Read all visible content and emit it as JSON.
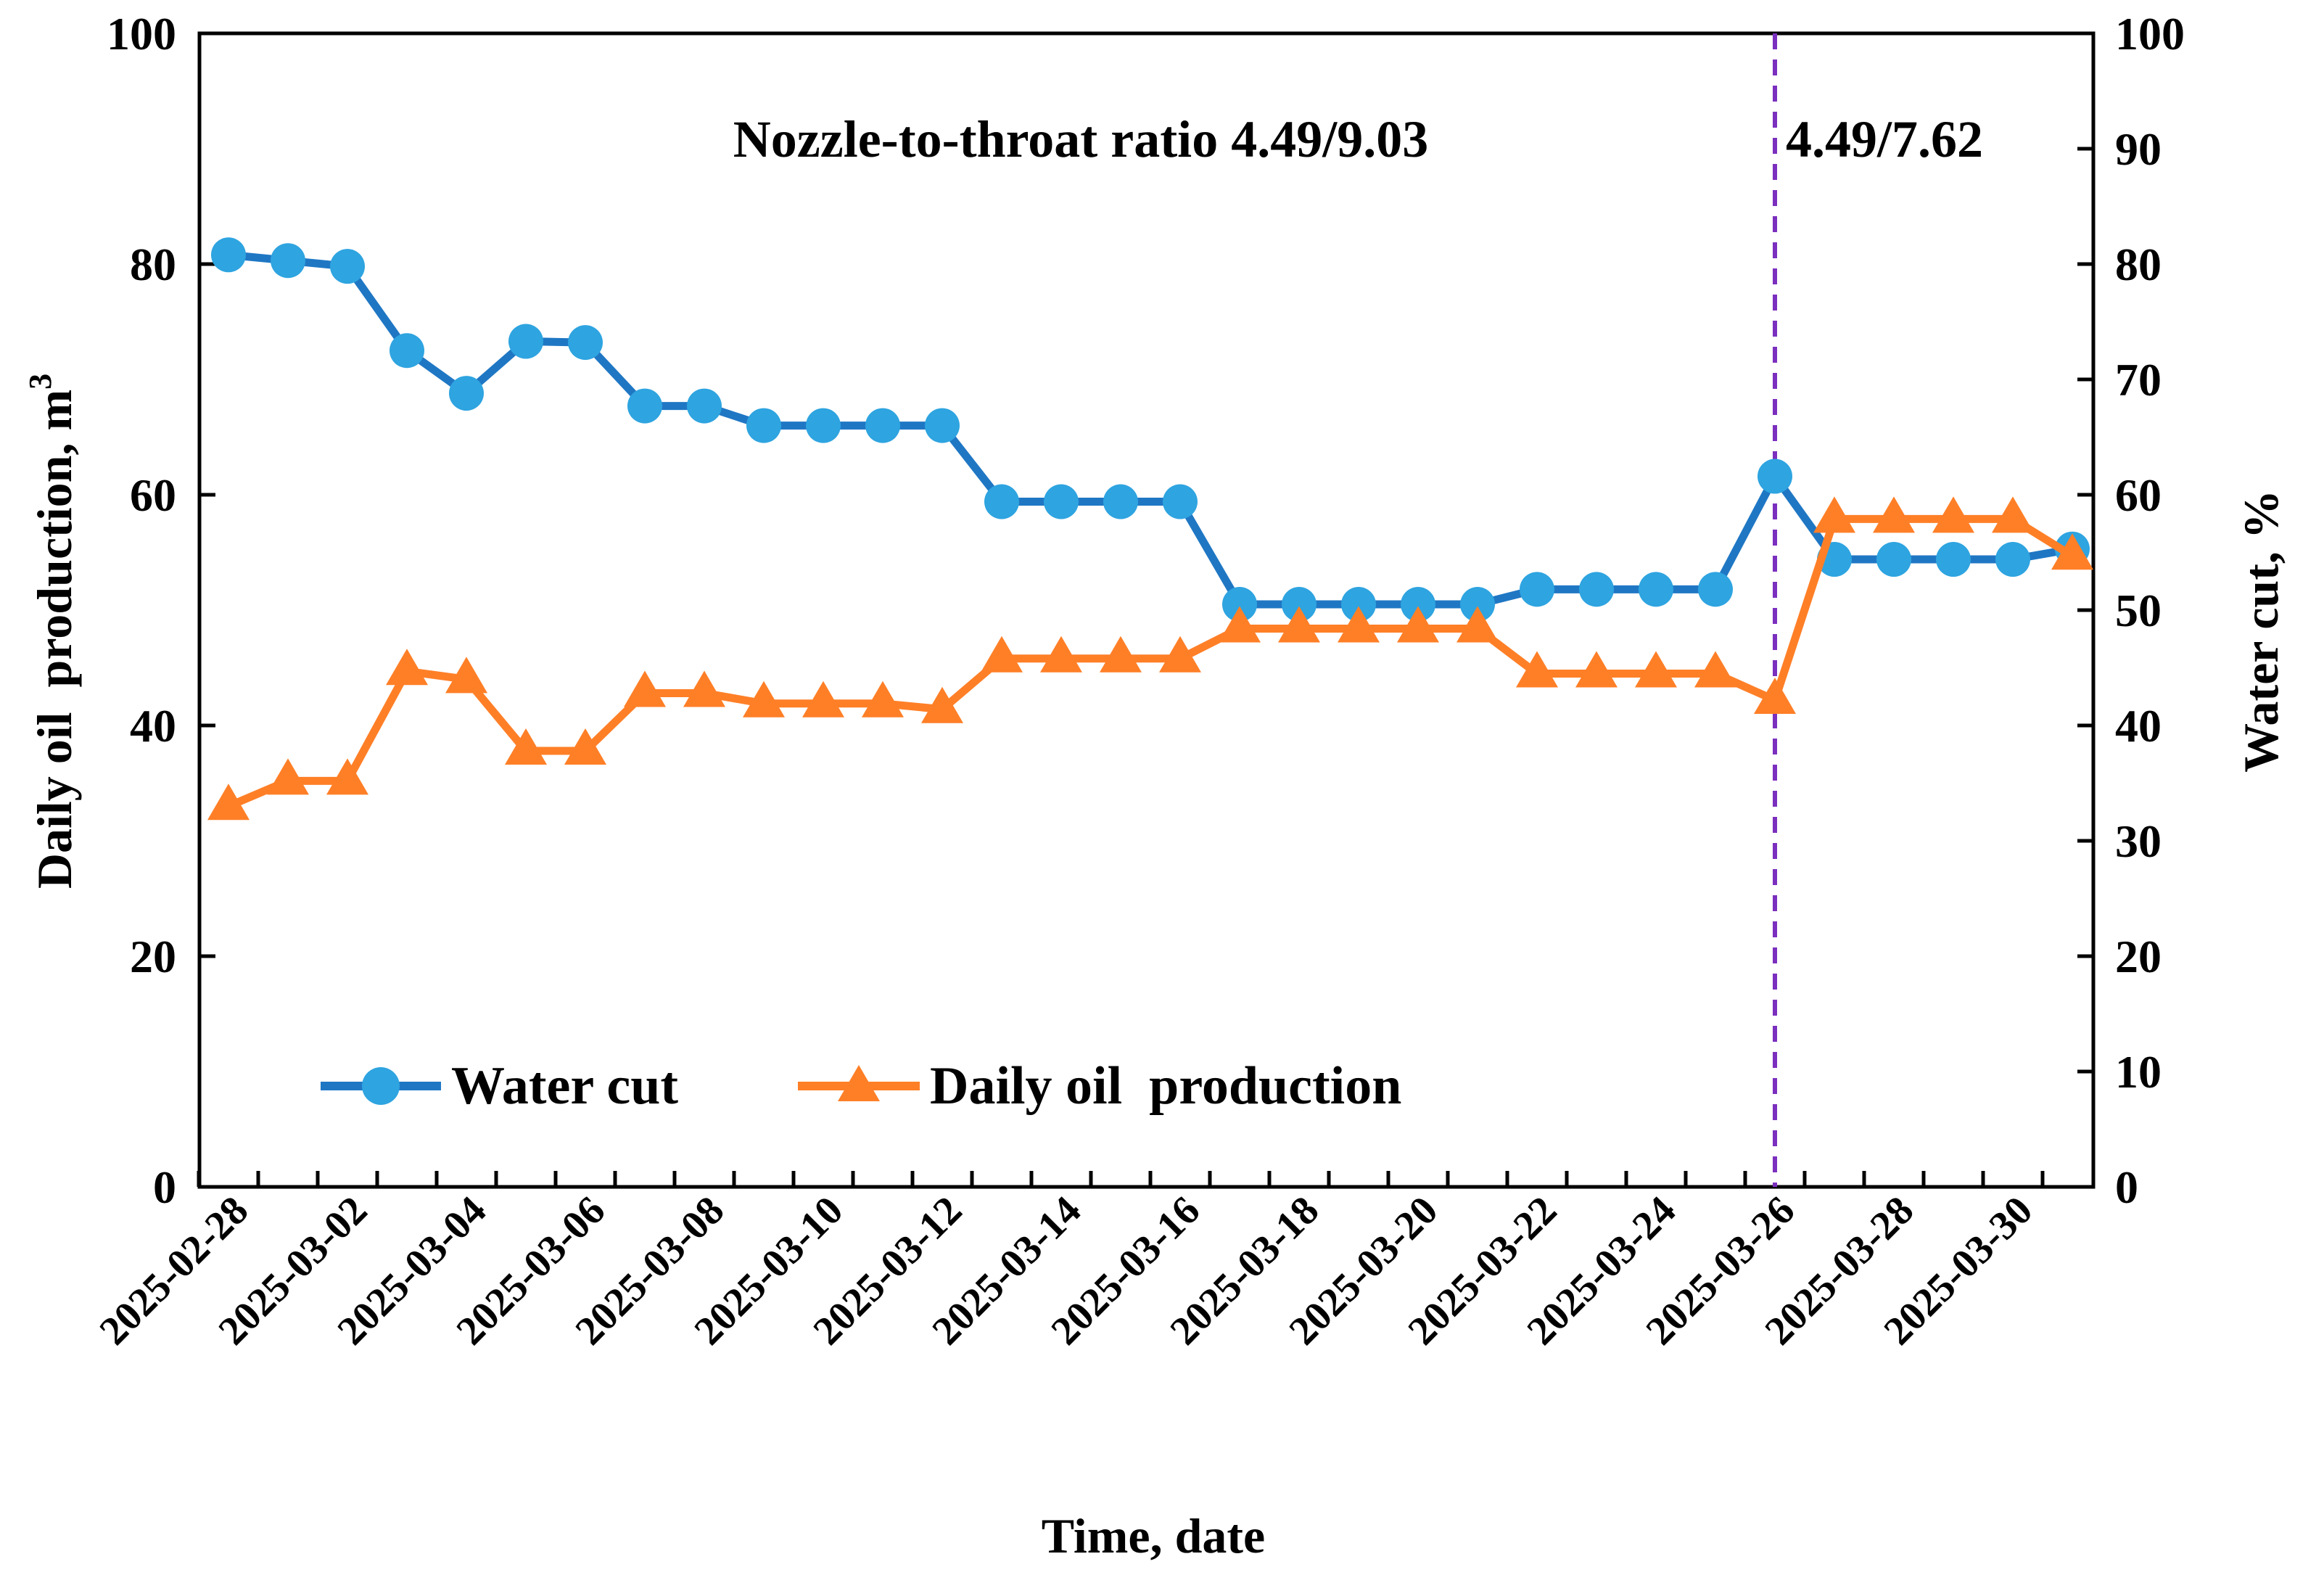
{
  "chart_data": {
    "type": "line",
    "title": "",
    "xlabel": "Time, date",
    "ylabel_left": "Daily oil  production, m",
    "ylabel_left_superscript": "3",
    "ylabel_right": "Water cut, %",
    "ylim_left": [
      0,
      100
    ],
    "ylim_right": [
      0,
      100
    ],
    "yticks_left": [
      "0",
      "20",
      "40",
      "60",
      "80",
      "100"
    ],
    "yticks_right": [
      "0",
      "10",
      "20",
      "30",
      "40",
      "50",
      "60",
      "70",
      "80",
      "90",
      "100"
    ],
    "x_tick_labels": [
      "2025-02-28",
      "2025-03-02",
      "2025-03-04",
      "2025-03-06",
      "2025-03-08",
      "2025-03-10",
      "2025-03-12",
      "2025-03-14",
      "2025-03-16",
      "2025-03-18",
      "2025-03-20",
      "2025-03-22",
      "2025-03-24",
      "2025-03-26",
      "2025-03-28",
      "2025-03-30"
    ],
    "dates": [
      "2025-02-28",
      "2025-03-01",
      "2025-03-02",
      "2025-03-03",
      "2025-03-04",
      "2025-03-05",
      "2025-03-06",
      "2025-03-07",
      "2025-03-08",
      "2025-03-09",
      "2025-03-10",
      "2025-03-11",
      "2025-03-12",
      "2025-03-13",
      "2025-03-14",
      "2025-03-15",
      "2025-03-16",
      "2025-03-17",
      "2025-03-18",
      "2025-03-19",
      "2025-03-20",
      "2025-03-21",
      "2025-03-22",
      "2025-03-23",
      "2025-03-24",
      "2025-03-25",
      "2025-03-26",
      "2025-03-27",
      "2025-03-28",
      "2025-03-29",
      "2025-03-30",
      "2025-03-31"
    ],
    "series": [
      {
        "name": "Water cut",
        "axis": "right",
        "color": "#1f77c4",
        "marker_color": "#2ea4e0",
        "marker": "circle",
        "values": [
          80.8,
          80.3,
          79.8,
          72.5,
          68.8,
          73.3,
          73.2,
          67.7,
          67.7,
          66.0,
          66.0,
          66.0,
          66.0,
          59.4,
          59.4,
          59.4,
          59.4,
          50.5,
          50.5,
          50.5,
          50.5,
          50.5,
          51.8,
          51.8,
          51.8,
          51.8,
          61.6,
          54.4,
          54.4,
          54.4,
          54.4,
          55.3
        ]
      },
      {
        "name": "Daily oil  production",
        "axis": "left",
        "color": "#ff7f27",
        "marker": "triangle",
        "values": [
          33.0,
          35.2,
          35.2,
          44.7,
          44.0,
          37.8,
          37.8,
          42.8,
          42.8,
          41.9,
          41.9,
          41.9,
          41.4,
          45.8,
          45.8,
          45.8,
          45.8,
          48.4,
          48.4,
          48.4,
          48.4,
          48.4,
          44.5,
          44.5,
          44.5,
          44.5,
          42.2,
          57.9,
          57.9,
          57.9,
          57.9,
          54.7
        ]
      }
    ],
    "vline": {
      "date_index": 26,
      "color": "#7b2fbe",
      "style": "dashed"
    },
    "annotations": [
      "Nozzle-to-throat ratio 4.49/9.03",
      "4.49/7.62"
    ],
    "legend": {
      "placement": "bottom-left",
      "entries": [
        "Water cut",
        "Daily oil  production"
      ]
    },
    "grid": false
  }
}
